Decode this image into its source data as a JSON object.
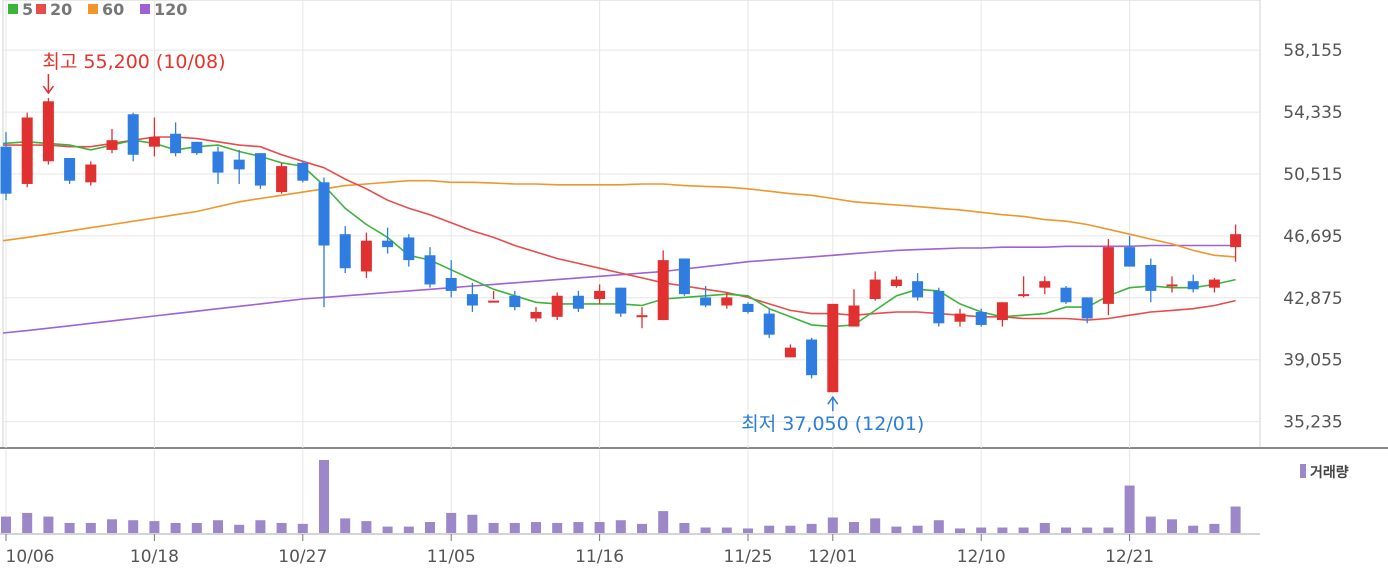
{
  "legend": [
    {
      "label": "5",
      "color": "#3cb43c"
    },
    {
      "label": "20",
      "color": "#e84c4c"
    },
    {
      "label": "60",
      "color": "#f0962a"
    },
    {
      "label": "120",
      "color": "#9e62d6"
    }
  ],
  "annotations": {
    "high": "최고 55,200 (10/08)",
    "low": "최저 37,050 (12/01)"
  },
  "volume_label": "거래량",
  "colors": {
    "up": "#e03030",
    "down": "#2f7de0",
    "volume": "#9c87c8",
    "grid": "#e6e6e6"
  },
  "chart_data": {
    "type": "candlestick",
    "y_ticks": [
      "58,155",
      "54,335",
      "50,515",
      "46,695",
      "42,875",
      "39,055",
      "35,235"
    ],
    "y_tick_values": [
      58155,
      54335,
      50515,
      46695,
      42875,
      39055,
      35235
    ],
    "ylim": [
      34100,
      59400
    ],
    "x_ticks": [
      {
        "label": "10/06",
        "index": 0
      },
      {
        "label": "10/18",
        "index": 7
      },
      {
        "label": "10/27",
        "index": 14
      },
      {
        "label": "11/05",
        "index": 21
      },
      {
        "label": "11/16",
        "index": 28
      },
      {
        "label": "11/25",
        "index": 35
      },
      {
        "label": "12/01",
        "index": 39
      },
      {
        "label": "12/10",
        "index": 46
      },
      {
        "label": "12/21",
        "index": 53
      }
    ],
    "candles": [
      [
        52200,
        53100,
        48900,
        49300
      ],
      [
        49900,
        54300,
        49700,
        54000
      ],
      [
        51300,
        55200,
        51100,
        55000
      ],
      [
        51500,
        51500,
        49900,
        50100
      ],
      [
        50000,
        51300,
        49800,
        51100
      ],
      [
        52000,
        53300,
        51800,
        52600
      ],
      [
        54200,
        54300,
        51300,
        51700
      ],
      [
        52200,
        54000,
        51600,
        52800
      ],
      [
        53000,
        53700,
        51600,
        51800
      ],
      [
        52500,
        52500,
        51700,
        51800
      ],
      [
        51900,
        52200,
        49900,
        50600
      ],
      [
        51400,
        52000,
        49900,
        50800
      ],
      [
        51800,
        51800,
        49600,
        49800
      ],
      [
        49400,
        51200,
        49300,
        51000
      ],
      [
        51200,
        51300,
        50000,
        50100
      ],
      [
        50000,
        50300,
        42300,
        46100
      ],
      [
        46800,
        47300,
        44400,
        44700
      ],
      [
        44500,
        46900,
        44100,
        46400
      ],
      [
        46400,
        47200,
        45600,
        46000
      ],
      [
        46600,
        46800,
        44800,
        45200
      ],
      [
        45500,
        46000,
        43500,
        43700
      ],
      [
        44100,
        45200,
        42900,
        43300
      ],
      [
        43100,
        43800,
        42000,
        42400
      ],
      [
        42600,
        43300,
        42800,
        42700
      ],
      [
        43000,
        43300,
        42100,
        42300
      ],
      [
        41600,
        42300,
        41400,
        42000
      ],
      [
        41700,
        43200,
        41500,
        43000
      ],
      [
        43000,
        43300,
        42000,
        42200
      ],
      [
        42800,
        43700,
        42500,
        43300
      ],
      [
        43500,
        43500,
        41700,
        41900
      ],
      [
        41700,
        42300,
        41000,
        41800
      ],
      [
        41500,
        45800,
        41500,
        45200
      ],
      [
        45300,
        45300,
        43000,
        43100
      ],
      [
        42900,
        43600,
        42300,
        42400
      ],
      [
        42400,
        43200,
        42200,
        42900
      ],
      [
        42500,
        42600,
        41900,
        42000
      ],
      [
        41900,
        42200,
        40400,
        40600
      ],
      [
        39200,
        40000,
        39200,
        39800
      ],
      [
        40300,
        40400,
        37900,
        38100
      ],
      [
        37050,
        42500,
        37050,
        42500
      ],
      [
        41100,
        43400,
        41100,
        42400
      ],
      [
        42800,
        44500,
        42700,
        44000
      ],
      [
        43600,
        44200,
        43500,
        44000
      ],
      [
        43900,
        44400,
        42700,
        42900
      ],
      [
        43300,
        43500,
        41100,
        41300
      ],
      [
        41400,
        42200,
        41100,
        41900
      ],
      [
        42000,
        42200,
        41100,
        41200
      ],
      [
        41500,
        42600,
        41100,
        42600
      ],
      [
        43100,
        44200,
        42900,
        43100
      ],
      [
        43500,
        44200,
        43100,
        43900
      ],
      [
        43500,
        43600,
        42500,
        42600
      ],
      [
        42900,
        42900,
        41300,
        41600
      ],
      [
        42500,
        46500,
        41800,
        46000
      ],
      [
        46000,
        46700,
        44800,
        44800
      ],
      [
        44900,
        45300,
        42600,
        43300
      ],
      [
        43600,
        44200,
        43200,
        43700
      ],
      [
        43900,
        44300,
        43200,
        43400
      ],
      [
        43500,
        44100,
        43200,
        44000
      ],
      [
        46000,
        47400,
        45100,
        46800
      ]
    ],
    "ma": [
      {
        "period": 5,
        "values": [
          52400,
          52500,
          52400,
          52300,
          52000,
          52300,
          52600,
          52400,
          52000,
          52200,
          52300,
          51900,
          51600,
          51200,
          51000,
          49800,
          48400,
          47400,
          46600,
          45500,
          45200,
          44600,
          44000,
          43400,
          43000,
          42600,
          42500,
          42500,
          42500,
          42500,
          42400,
          42800,
          42900,
          43000,
          43100,
          43000,
          42200,
          41700,
          41200,
          41100,
          41200,
          42100,
          43000,
          43400,
          43300,
          42500,
          42000,
          41700,
          41800,
          41900,
          42300,
          42300,
          43000,
          43500,
          43600,
          43500,
          43500,
          43700,
          44000
        ]
      },
      {
        "period": 20,
        "values": [
          52300,
          52300,
          52300,
          52200,
          52200,
          52400,
          52600,
          52800,
          52800,
          52700,
          52500,
          52300,
          52200,
          51700,
          51300,
          50900,
          50200,
          49600,
          48900,
          48400,
          48000,
          47500,
          47000,
          46600,
          46100,
          45700,
          45300,
          45000,
          44700,
          44400,
          44100,
          43800,
          43600,
          43400,
          43200,
          42900,
          42500,
          42100,
          41900,
          41900,
          41800,
          41900,
          42000,
          42000,
          41900,
          41800,
          41700,
          41700,
          41600,
          41600,
          41600,
          41500,
          41600,
          41800,
          42000,
          42100,
          42200,
          42400,
          42700
        ]
      },
      {
        "period": 60,
        "values": [
          46400,
          46600,
          46800,
          47000,
          47200,
          47400,
          47600,
          47800,
          48000,
          48200,
          48500,
          48800,
          49000,
          49200,
          49400,
          49600,
          49800,
          49900,
          50000,
          50100,
          50100,
          50000,
          50000,
          49950,
          49900,
          49900,
          49850,
          49850,
          49850,
          49850,
          49900,
          49900,
          49800,
          49750,
          49700,
          49600,
          49450,
          49300,
          49200,
          49000,
          48800,
          48700,
          48600,
          48500,
          48400,
          48300,
          48150,
          48000,
          47900,
          47700,
          47600,
          47400,
          47100,
          46800,
          46500,
          46200,
          45800,
          45500,
          45400
        ]
      },
      {
        "period": 120,
        "values": [
          40700,
          40850,
          41000,
          41150,
          41300,
          41450,
          41600,
          41750,
          41900,
          42050,
          42200,
          42350,
          42500,
          42650,
          42800,
          42900,
          43000,
          43100,
          43200,
          43300,
          43400,
          43500,
          43600,
          43700,
          43800,
          43900,
          44000,
          44100,
          44200,
          44300,
          44400,
          44500,
          44650,
          44800,
          44950,
          45100,
          45200,
          45300,
          45400,
          45500,
          45600,
          45700,
          45800,
          45850,
          45900,
          45950,
          45950,
          46000,
          46000,
          46000,
          46050,
          46050,
          46050,
          46050,
          46100,
          46100,
          46100,
          46100,
          46100
        ]
      }
    ],
    "volume": [
      18,
      22,
      18,
      11,
      11,
      15,
      14,
      13,
      11,
      11,
      14,
      9,
      14,
      11,
      10,
      80,
      16,
      13,
      7,
      7,
      12,
      22,
      20,
      11,
      11,
      12,
      11,
      12,
      12,
      14,
      10,
      24,
      11,
      6,
      6,
      5,
      8,
      8,
      10,
      17,
      12,
      16,
      7,
      8,
      14,
      5,
      6,
      6,
      6,
      11,
      6,
      6,
      6,
      52,
      18,
      15,
      8,
      10,
      29
    ]
  }
}
